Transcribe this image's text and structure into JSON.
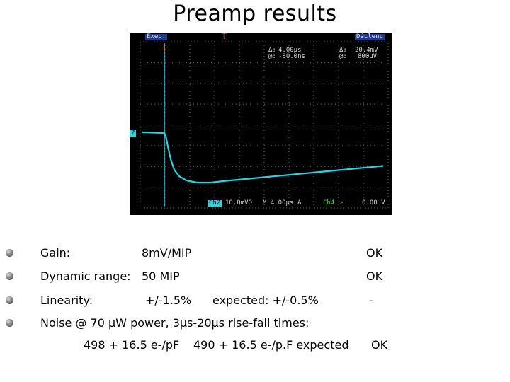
{
  "title": "Preamp results",
  "scope": {
    "status_left": "Exec.",
    "status_right": "Déclenc",
    "delta_label": "Δ:",
    "delta_time": "4.00μs",
    "delta_volt": "20.4mV",
    "at_label": "@:",
    "at_time": "-80.0ns",
    "at_volt": "800μV",
    "ch2_tag": "Ch2",
    "ch2_scale": "10.0mVΩ",
    "timebase": "M 4.00μs",
    "trigger_src_letter": "A",
    "ch4_tag": "Ch4",
    "trigger_level": "0.00 V",
    "ch_marker": "2",
    "trace_color": "#22d6e6"
  },
  "results": [
    {
      "label": "Gain:",
      "value": "8mV/MIP",
      "status": "OK"
    },
    {
      "label": "Dynamic range:",
      "value": "50 MIP",
      "status": "OK"
    },
    {
      "label": "Linearity:",
      "value": "+/-1.5%",
      "expected": "expected: +/-0.5%",
      "status": "-"
    },
    {
      "label": "Noise @ 70 μW power, 3μs-20μs rise-fall times:"
    }
  ],
  "noise": {
    "measured": "498 + 16.5 e-/pF",
    "expected": "490 + 16.5 e-/p.F expected",
    "status": "OK"
  }
}
